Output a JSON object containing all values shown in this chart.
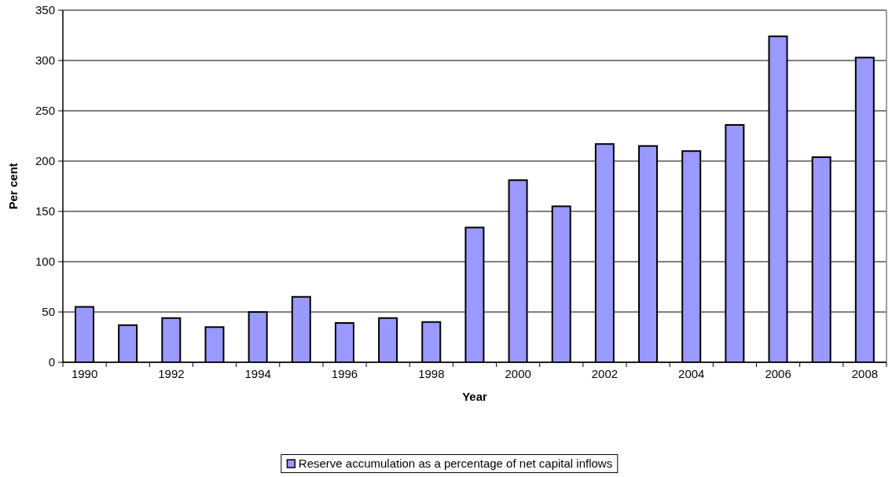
{
  "chart_data": {
    "type": "bar",
    "xlabel": "Year",
    "ylabel": "Per cent",
    "categories": [
      "1990",
      null,
      "1992",
      null,
      "1994",
      null,
      "1996",
      null,
      "1998",
      null,
      "2000",
      null,
      "2002",
      null,
      "2004",
      null,
      "2006",
      null,
      "2008"
    ],
    "series": [
      {
        "name": "Reserve accumulation as a percentage of net capital inflows",
        "color": "#9999ff",
        "values": [
          55,
          37,
          44,
          35,
          50,
          65,
          39,
          44,
          40,
          134,
          181,
          155,
          217,
          215,
          210,
          236,
          324,
          204,
          303
        ]
      }
    ],
    "ylim": [
      0,
      350
    ],
    "yticks": [
      0,
      50,
      100,
      150,
      200,
      250,
      300,
      350
    ],
    "grid": "y",
    "legend": "bottom"
  }
}
